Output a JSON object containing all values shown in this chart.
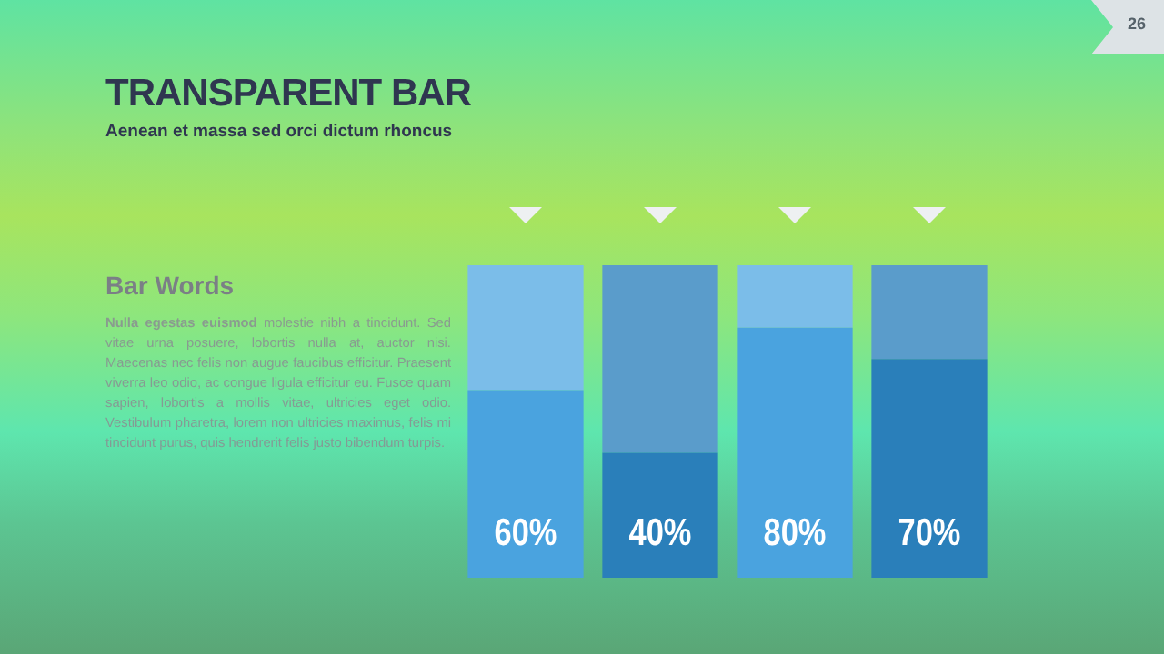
{
  "chart_data": {
    "type": "bar",
    "title": "TRANSPARENT BAR",
    "subtitle": "Aenean et massa sed orci dictum rhoncus",
    "annotations": [
      "Bar Words",
      "Nulla egestas euismod",
      "molestie nibh a tincidunt. Sed vitae urna posuere, lobortis nulla at, auctor nisi. Maecenas nec felis non augue faucibus efficitur. Praesent viverra leo odio, ac congue ligula efficitur eu. Fusce quam sapien, lobortis a mollis vitae, ultricies eget odio. Vestibulum pharetra, lorem non ultricies maximus, felis mi tincidunt purus, quis hendrerit felis justo bibendum turpis.",
      "26"
    ],
    "categories": [
      null,
      null,
      null,
      null
    ],
    "stacked": true,
    "ylim": [
      0,
      100
    ],
    "tick_labels": false,
    "legend": false,
    "series": [
      {
        "colors": [
          "#4aa3df",
          "#2a7fba",
          "#4aa3df",
          "#2a7fba"
        ],
        "values": [
          60,
          40,
          80,
          70
        ],
        "value_labels": [
          "60%",
          "40%",
          "80%",
          "70%"
        ]
      },
      {
        "colors": [
          "#7bbde9",
          "#5a9ccb",
          "#7bbde9",
          "#5a9ccb"
        ],
        "values": [
          40,
          60,
          20,
          30
        ]
      }
    ]
  }
}
